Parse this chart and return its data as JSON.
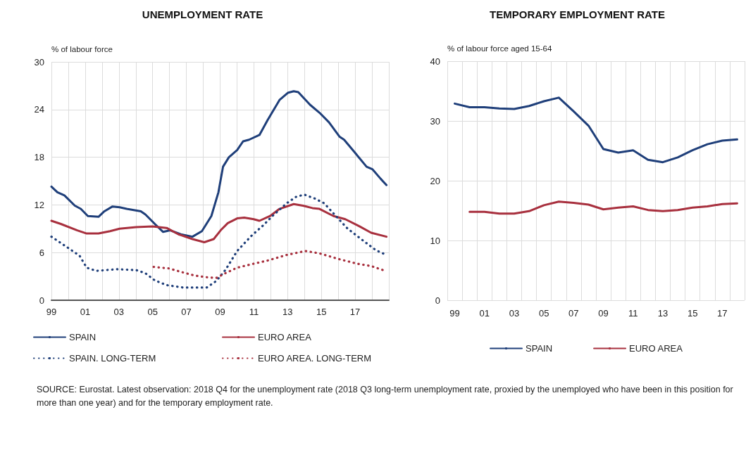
{
  "chart_data": [
    {
      "type": "line",
      "title": "UNEMPLOYMENT RATE",
      "ylabel": "% of labour force",
      "xlim": [
        1999,
        2019
      ],
      "xticks": [
        {
          "value": 1999,
          "label": "99"
        },
        {
          "value": 2000,
          "label": null
        },
        {
          "value": 2001,
          "label": "01"
        },
        {
          "value": 2002,
          "label": null
        },
        {
          "value": 2003,
          "label": "03"
        },
        {
          "value": 2004,
          "label": null
        },
        {
          "value": 2005,
          "label": "05"
        },
        {
          "value": 2006,
          "label": null
        },
        {
          "value": 2007,
          "label": "07"
        },
        {
          "value": 2008,
          "label": null
        },
        {
          "value": 2009,
          "label": "09"
        },
        {
          "value": 2010,
          "label": null
        },
        {
          "value": 2011,
          "label": "11"
        },
        {
          "value": 2012,
          "label": null
        },
        {
          "value": 2013,
          "label": "13"
        },
        {
          "value": 2014,
          "label": null
        },
        {
          "value": 2015,
          "label": "15"
        },
        {
          "value": 2016,
          "label": null
        },
        {
          "value": 2017,
          "label": "17"
        },
        {
          "value": 2018,
          "label": null
        },
        {
          "value": 2019,
          "label": null
        }
      ],
      "ylim": [
        0,
        30
      ],
      "yticks": [
        0,
        6,
        12,
        18,
        24,
        30
      ],
      "grid": true,
      "legend": "bottom",
      "marker": "none",
      "series": [
        {
          "name": "SPAIN",
          "color": "#1f3f7a",
          "line_style": "solid",
          "x": [
            1999.0,
            1999.35,
            1999.77,
            2000.39,
            2000.74,
            2001.16,
            2001.79,
            2002.14,
            2002.62,
            2003.04,
            2003.46,
            2004.3,
            2004.57,
            2005.13,
            2005.62,
            2006.04,
            2006.67,
            2007.36,
            2007.92,
            2008.48,
            2008.9,
            2009.17,
            2009.52,
            2010.01,
            2010.36,
            2010.71,
            2011.33,
            2011.82,
            2012.52,
            2013.01,
            2013.36,
            2013.63,
            2014.33,
            2014.89,
            2015.45,
            2016.07,
            2016.35,
            2016.98,
            2017.68,
            2018.02,
            2018.51,
            2018.86
          ],
          "values": [
            14.3,
            13.6,
            13.2,
            11.9,
            11.5,
            10.6,
            10.5,
            11.2,
            11.8,
            11.7,
            11.5,
            11.2,
            10.8,
            9.6,
            8.6,
            8.8,
            8.3,
            8.0,
            8.7,
            10.6,
            13.6,
            16.8,
            18.0,
            18.9,
            20.0,
            20.2,
            20.8,
            22.7,
            25.2,
            26.1,
            26.3,
            26.2,
            24.6,
            23.6,
            22.4,
            20.6,
            20.2,
            18.6,
            16.8,
            16.5,
            15.3,
            14.5
          ]
        },
        {
          "name": "EURO AREA",
          "color": "#a8303e",
          "line_style": "solid",
          "x": [
            1999.0,
            1999.56,
            2000.53,
            2001.09,
            2001.79,
            2002.48,
            2003.04,
            2004.02,
            2004.99,
            2005.83,
            2006.53,
            2007.36,
            2008.06,
            2008.62,
            2009.03,
            2009.45,
            2010.01,
            2010.43,
            2010.99,
            2011.33,
            2011.96,
            2012.52,
            2013.36,
            2013.91,
            2014.47,
            2014.89,
            2015.72,
            2016.42,
            2017.26,
            2017.95,
            2018.86
          ],
          "values": [
            10.0,
            9.6,
            8.8,
            8.4,
            8.4,
            8.7,
            9.0,
            9.2,
            9.3,
            9.1,
            8.3,
            7.7,
            7.3,
            7.7,
            8.8,
            9.7,
            10.3,
            10.4,
            10.2,
            10.0,
            10.6,
            11.5,
            12.1,
            11.9,
            11.6,
            11.5,
            10.6,
            10.2,
            9.3,
            8.5,
            8.0
          ]
        },
        {
          "name": "SPAIN. LONG-TERM",
          "color": "#1f3f7a",
          "line_style": "dotted",
          "x": [
            1999.0,
            1999.84,
            2000.67,
            2001.09,
            2001.65,
            2002.9,
            2004.02,
            2004.57,
            2005.13,
            2005.83,
            2006.8,
            2008.2,
            2008.76,
            2009.31,
            2010.01,
            2010.85,
            2011.54,
            2012.1,
            2012.94,
            2013.49,
            2013.98,
            2014.61,
            2015.17,
            2015.86,
            2016.56,
            2017.54,
            2018.23,
            2018.86
          ],
          "values": [
            8.0,
            6.8,
            5.6,
            4.1,
            3.7,
            3.9,
            3.8,
            3.4,
            2.5,
            1.9,
            1.6,
            1.6,
            2.4,
            3.8,
            6.2,
            8.1,
            9.4,
            10.6,
            12.2,
            13.0,
            13.3,
            12.8,
            12.2,
            10.6,
            9.0,
            7.4,
            6.3,
            5.7
          ]
        },
        {
          "name": "EURO AREA. LONG-TERM",
          "color": "#a8303e",
          "line_style": "dotted",
          "x": [
            2005.06,
            2005.97,
            2006.8,
            2007.5,
            2008.2,
            2008.76,
            2009.31,
            2010.01,
            2010.99,
            2011.82,
            2012.94,
            2014.05,
            2014.89,
            2016.0,
            2017.12,
            2017.95,
            2018.65
          ],
          "values": [
            4.2,
            4.0,
            3.5,
            3.1,
            2.9,
            2.8,
            3.4,
            4.1,
            4.6,
            5.0,
            5.7,
            6.2,
            5.9,
            5.2,
            4.6,
            4.3,
            3.8
          ]
        }
      ],
      "annotations": [
        "SOURCE: Eurostat. Latest observation: 2018 Q4 for the unemployment rate (2018 Q3 long-term unemployment rate, proxied by the unemployed who have been in this position for more than one year) and for the temporary employment rate."
      ]
    },
    {
      "type": "line",
      "title": "TEMPORARY EMPLOYMENT RATE",
      "ylabel": "% of labour force aged 15-64",
      "categories": [
        "99",
        null,
        "01",
        null,
        "03",
        null,
        "05",
        null,
        "07",
        null,
        "09",
        null,
        "11",
        null,
        "13",
        null,
        "15",
        null,
        "17",
        null
      ],
      "ylim": [
        0,
        40
      ],
      "yticks": [
        0,
        10,
        20,
        30,
        40
      ],
      "grid": true,
      "legend": "bottom",
      "marker": "none",
      "series": [
        {
          "name": "SPAIN",
          "color": "#1f3f7a",
          "line_style": "solid",
          "values": [
            32.9,
            32.3,
            32.3,
            32.1,
            32.0,
            32.5,
            33.3,
            33.9,
            31.6,
            29.2,
            25.3,
            24.7,
            25.1,
            23.5,
            23.1,
            23.9,
            25.1,
            26.1,
            26.7,
            26.9
          ]
        },
        {
          "name": "EURO AREA",
          "color": "#a8303e",
          "line_style": "solid",
          "values": [
            null,
            14.8,
            14.8,
            14.5,
            14.5,
            14.9,
            15.9,
            16.5,
            16.3,
            16.0,
            15.2,
            15.5,
            15.7,
            15.1,
            14.9,
            15.1,
            15.5,
            15.7,
            16.1,
            16.2
          ]
        }
      ]
    }
  ]
}
